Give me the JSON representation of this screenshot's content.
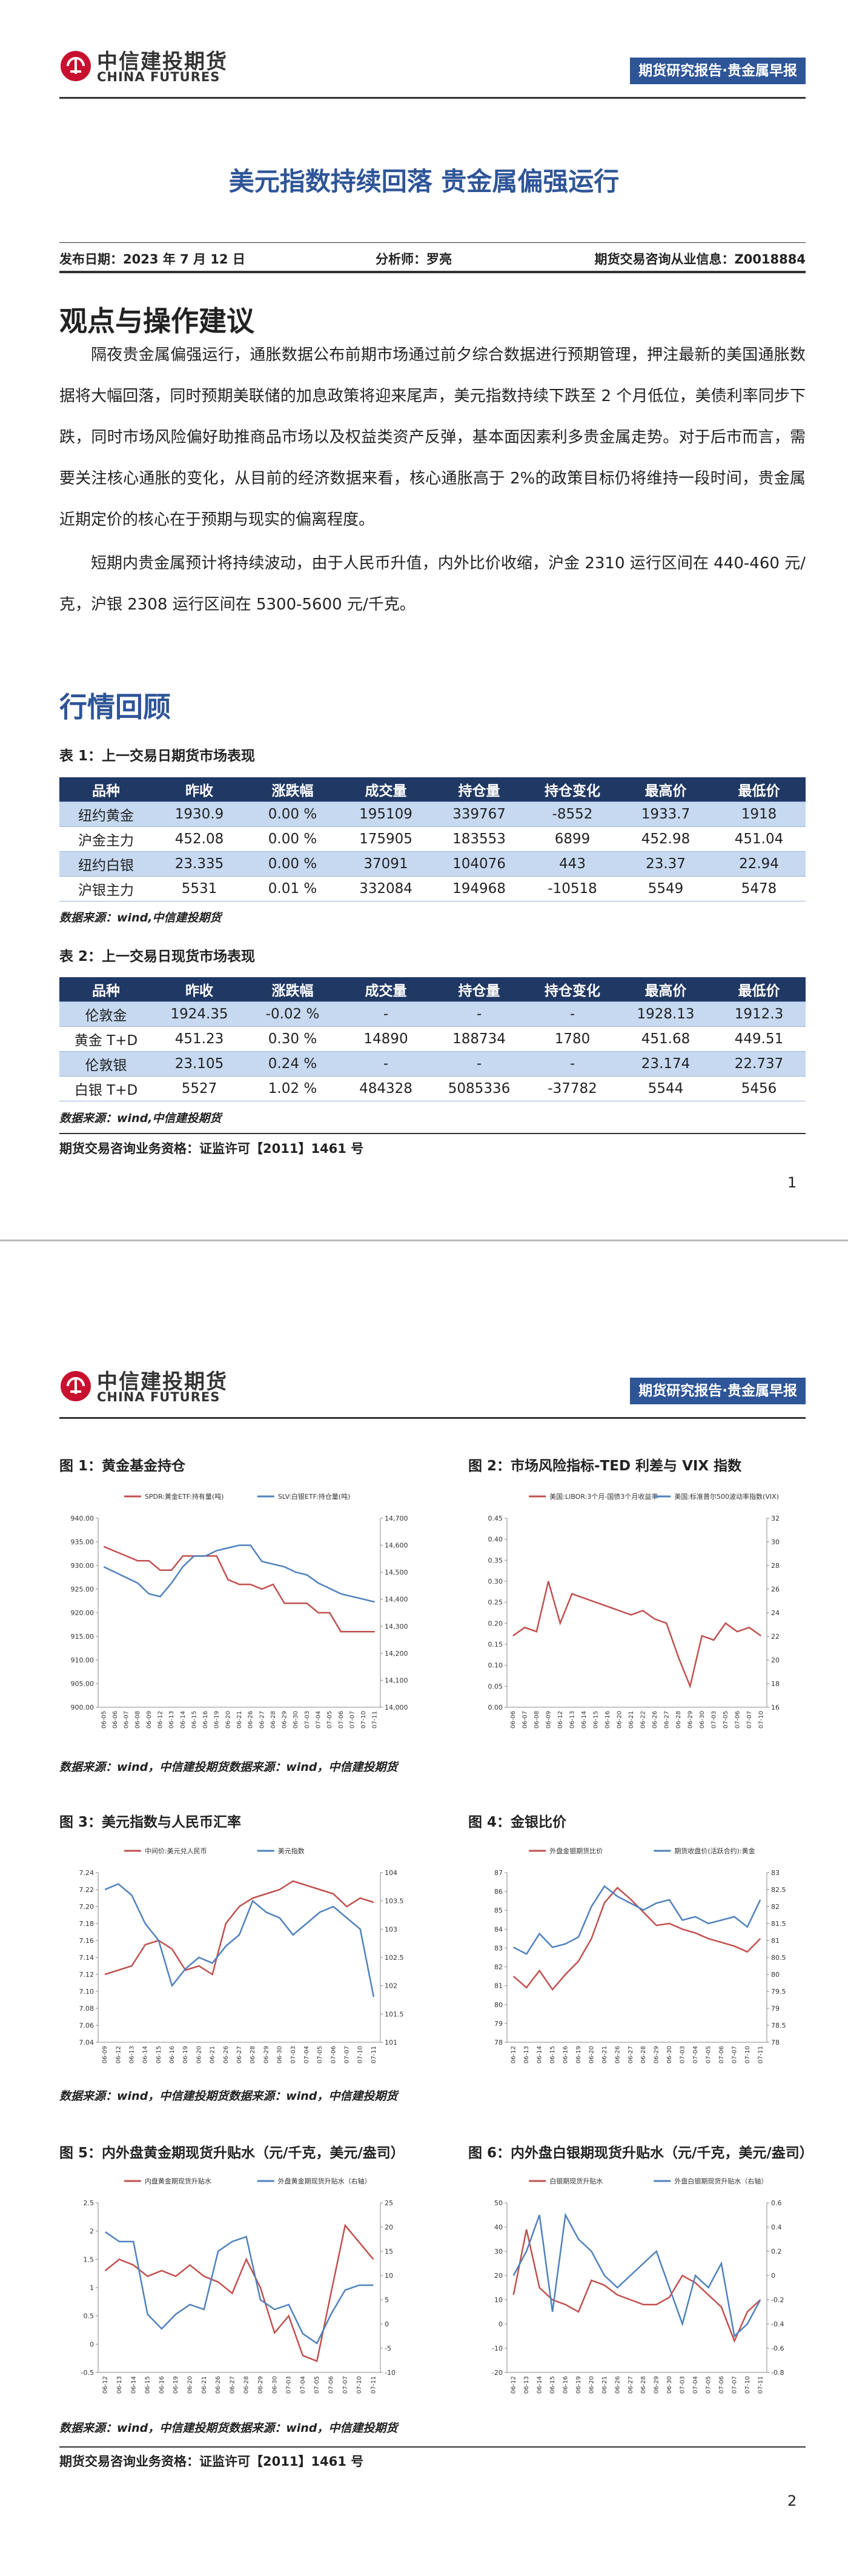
{
  "header": {
    "logo_cn": "中信建投期货",
    "logo_en": "CHINA FUTURES",
    "tag": "期货研究报告·贵金属早报"
  },
  "title": "美元指数持续回落 贵金属偏强运行",
  "info": {
    "date": "发布日期：2023 年 7 月 12 日",
    "analyst": "分析师：罗亮",
    "license": "期货交易咨询从业信息：Z0018884"
  },
  "section1": {
    "heading": "观点与操作建议",
    "paragraphs": [
      "隔夜贵金属偏强运行，通胀数据公布前期市场通过前夕综合数据进行预期管理，押注最新的美国通胀数据将大幅回落，同时预期美联储的加息政策将迎来尾声，美元指数持续下跌至 2 个月低位，美债利率同步下跌，同时市场风险偏好助推商品市场以及权益类资产反弹，基本面因素利多贵金属走势。对于后市而言，需要关注核心通胀的变化，从目前的经济数据来看，核心通胀高于 2%的政策目标仍将维持一段时间，贵金属近期定价的核心在于预期与现实的偏离程度。",
      "短期内贵金属预计将持续波动，由于人民币升值，内外比价收缩，沪金 2310 运行区间在 440-460 元/克，沪银 2308 运行区间在 5300-5600 元/千克。"
    ]
  },
  "section2": {
    "heading": "行情回顾"
  },
  "tables": [
    {
      "caption": "表 1：上一交易日期货市场表现",
      "header": [
        "品种",
        "昨收",
        "涨跌幅",
        "成交量",
        "持仓量",
        "持仓变化",
        "最高价",
        "最低价"
      ],
      "rows": [
        [
          "纽约黄金",
          "1930.9",
          "0.00 %",
          "195109",
          "339767",
          "-8552",
          "1933.7",
          "1918"
        ],
        [
          "沪金主力",
          "452.08",
          "0.00 %",
          "175905",
          "183553",
          "6899",
          "452.98",
          "451.04"
        ],
        [
          "纽约白银",
          "23.335",
          "0.00 %",
          "37091",
          "104076",
          "443",
          "23.37",
          "22.94"
        ],
        [
          "沪银主力",
          "5531",
          "0.01 %",
          "332084",
          "194968",
          "-10518",
          "5549",
          "5478"
        ]
      ],
      "source": "数据来源：wind,中信建投期货"
    },
    {
      "caption": "表 2：上一交易日现货市场表现",
      "header": [
        "品种",
        "昨收",
        "涨跌幅",
        "成交量",
        "持仓量",
        "持仓变化",
        "最高价",
        "最低价"
      ],
      "rows": [
        [
          "伦敦金",
          "1924.35",
          "-0.02 %",
          "-",
          "-",
          "-",
          "1928.13",
          "1912.3"
        ],
        [
          "黄金 T+D",
          "451.23",
          "0.30 %",
          "14890",
          "188734",
          "1780",
          "451.68",
          "449.51"
        ],
        [
          "伦敦银",
          "23.105",
          "0.24 %",
          "-",
          "-",
          "-",
          "23.174",
          "22.737"
        ],
        [
          "白银 T+D",
          "5527",
          "1.02 %",
          "484328",
          "5085336",
          "-37782",
          "5544",
          "5456"
        ]
      ],
      "source": "数据来源：wind,中信建投期货"
    }
  ],
  "footer": "期货交易咨询业务资格：证监许可【2011】1461 号",
  "page_numbers": [
    "1",
    "2"
  ],
  "chart_sources": [
    "数据来源：wind，中信建投期货数据来源：wind，中信建投期货",
    "数据来源：wind，中信建投期货数据来源：wind，中信建投期货",
    "数据来源：wind，中信建投期货数据来源：wind，中信建投期货"
  ],
  "charts": [
    {
      "type": "line",
      "caption": "图 1：黄金基金持仓",
      "categories": [
        "06-05",
        "06-06",
        "06-07",
        "06-08",
        "06-09",
        "06-12",
        "06-13",
        "06-14",
        "06-15",
        "06-16",
        "06-19",
        "06-20",
        "06-21",
        "06-26",
        "06-27",
        "06-28",
        "06-29",
        "06-30",
        "07-03",
        "07-04",
        "07-05",
        "07-06",
        "07-07",
        "07-10",
        "07-11"
      ],
      "series": [
        {
          "name": "SPDR:黄金ETF:持有量(吨)",
          "color": "#c0504d",
          "axis": "y",
          "values": [
            934,
            933,
            932,
            931,
            931,
            929,
            929,
            932,
            932,
            932,
            932,
            927,
            926,
            926,
            925,
            926,
            922,
            922,
            922,
            920,
            920,
            916,
            916,
            916,
            916
          ]
        },
        {
          "name": "SLV:白银ETF:持仓量(吨)",
          "color": "#4f81bd",
          "axis": "y2",
          "values": [
            14520,
            14500,
            14480,
            14460,
            14420,
            14410,
            14460,
            14520,
            14560,
            14560,
            14580,
            14590,
            14600,
            14600,
            14540,
            14530,
            14520,
            14500,
            14490,
            14460,
            14440,
            14420,
            14410,
            14400,
            14390
          ]
        }
      ],
      "ylim": [
        900,
        940
      ],
      "yticks": [
        {
          "value": 900,
          "label": "900.00"
        },
        {
          "value": 905,
          "label": "905.00"
        },
        {
          "value": 910,
          "label": "910.00"
        },
        {
          "value": 915,
          "label": "915.00"
        },
        {
          "value": 920,
          "label": "920.00"
        },
        {
          "value": 925,
          "label": "925.00"
        },
        {
          "value": 930,
          "label": "930.00"
        },
        {
          "value": 935,
          "label": "935.00"
        },
        {
          "value": 940,
          "label": "940.00"
        }
      ],
      "y2lim": [
        14000,
        14700
      ],
      "y2ticks": [
        {
          "value": 14000,
          "label": "14,000"
        },
        {
          "value": 14100,
          "label": "14,100"
        },
        {
          "value": 14200,
          "label": "14,200"
        },
        {
          "value": 14300,
          "label": "14,300"
        },
        {
          "value": 14400,
          "label": "14,400"
        },
        {
          "value": 14500,
          "label": "14,500"
        },
        {
          "value": 14600,
          "label": "14,600"
        },
        {
          "value": 14700,
          "label": "14,700"
        }
      ]
    },
    {
      "type": "line",
      "caption": "图 2：市场风险指标-TED 利差与 VIX 指数",
      "categories": [
        "06-06",
        "06-07",
        "06-08",
        "06-09",
        "06-12",
        "06-13",
        "06-14",
        "06-15",
        "06-16",
        "06-20",
        "06-21",
        "06-22",
        "06-26",
        "06-27",
        "06-28",
        "06-29",
        "06-30",
        "07-03",
        "07-05",
        "07-06",
        "07-07",
        "07-10"
      ],
      "series": [
        {
          "name": "美国:LIBOR:3个月-国债3个月收益率",
          "color": "#c0504d",
          "axis": "y",
          "values": [
            0.17,
            0.19,
            0.18,
            0.3,
            0.2,
            0.27,
            0.26,
            0.25,
            0.24,
            0.23,
            0.22,
            0.23,
            0.21,
            0.2,
            0.12,
            0.05,
            0.17,
            0.16,
            0.2,
            0.18,
            0.19,
            0.17
          ]
        },
        {
          "name": "美国:标准普尔500波动率指数(VIX)",
          "color": "#4f81bd",
          "axis": "y2",
          "values": [
            null,
            null,
            null,
            null,
            null,
            null,
            null,
            null,
            null,
            null,
            null,
            null,
            null,
            null,
            null,
            null,
            null,
            null,
            null,
            null,
            null,
            null
          ]
        }
      ],
      "ylim": [
        0,
        0.45
      ],
      "yticks": [
        {
          "value": 0,
          "label": "0.00"
        },
        0.05,
        {
          "value": 0.1,
          "label": "0.10"
        },
        0.15,
        {
          "value": 0.2,
          "label": "0.20"
        },
        0.25,
        {
          "value": 0.3,
          "label": "0.30"
        },
        0.35,
        {
          "value": 0.4,
          "label": "0.40"
        },
        0.45
      ],
      "y2lim": [
        16,
        32
      ],
      "y2ticks": [
        16,
        18,
        20,
        22,
        24,
        26,
        28,
        30,
        32
      ]
    },
    {
      "type": "line",
      "caption": "图 3：美元指数与人民币汇率",
      "categories": [
        "06-09",
        "06-12",
        "06-13",
        "06-14",
        "06-15",
        "06-16",
        "06-19",
        "06-20",
        "06-21",
        "06-26",
        "06-27",
        "06-28",
        "06-29",
        "06-30",
        "07-03",
        "07-04",
        "07-05",
        "07-06",
        "07-07",
        "07-10",
        "07-11"
      ],
      "series": [
        {
          "name": "中间价:美元兑人民币",
          "color": "#c0504d",
          "axis": "y",
          "values": [
            7.12,
            7.125,
            7.13,
            7.155,
            7.16,
            7.15,
            7.125,
            7.13,
            7.12,
            7.18,
            7.2,
            7.21,
            7.215,
            7.22,
            7.23,
            7.225,
            7.22,
            7.215,
            7.2,
            7.21,
            7.205
          ]
        },
        {
          "name": "美元指数",
          "color": "#4f81bd",
          "axis": "y2",
          "values": [
            103.7,
            103.8,
            103.6,
            103.1,
            102.8,
            102,
            102.3,
            102.5,
            102.4,
            102.7,
            102.9,
            103.5,
            103.3,
            103.2,
            102.9,
            103.1,
            103.3,
            103.4,
            103.2,
            103,
            101.8
          ]
        }
      ],
      "ylim": [
        7.04,
        7.24
      ],
      "yticks": [
        7.04,
        7.06,
        7.08,
        {
          "value": 7.1,
          "label": "7.10"
        },
        7.12,
        7.14,
        7.16,
        7.18,
        {
          "value": 7.2,
          "label": "7.20"
        },
        7.22,
        7.24
      ],
      "y2lim": [
        101,
        104
      ],
      "y2ticks": [
        101,
        101.5,
        102,
        102.5,
        103,
        103.5,
        104
      ]
    },
    {
      "type": "line",
      "caption": "图 4：金银比价",
      "categories": [
        "06-12",
        "06-13",
        "06-14",
        "06-15",
        "06-16",
        "06-19",
        "06-20",
        "06-21",
        "06-26",
        "06-27",
        "06-28",
        "06-29",
        "06-30",
        "07-03",
        "07-04",
        "07-05",
        "07-06",
        "07-07",
        "07-10",
        "07-11"
      ],
      "series": [
        {
          "name": "外盘金银期货比价",
          "color": "#c0504d",
          "axis": "y",
          "values": [
            81.5,
            80.9,
            81.8,
            80.8,
            81.6,
            82.3,
            83.5,
            85.4,
            86.2,
            85.6,
            84.9,
            84.2,
            84.3,
            84,
            83.8,
            83.5,
            83.3,
            83.1,
            82.8,
            83.5
          ]
        },
        {
          "name": "期货收盘价(活跃合约):黄金",
          "color": "#4f81bd",
          "axis": "y2",
          "values": [
            80.8,
            80.6,
            81.2,
            80.8,
            80.9,
            81.1,
            82,
            82.6,
            82.3,
            82.1,
            81.9,
            82.1,
            82.2,
            81.6,
            81.7,
            81.5,
            81.6,
            81.7,
            81.4,
            82.2
          ]
        }
      ],
      "ylim": [
        78,
        87
      ],
      "yticks": [
        78,
        79,
        80,
        81,
        82,
        83,
        84,
        85,
        86,
        87
      ],
      "y2lim": [
        78,
        83
      ],
      "y2ticks": [
        78,
        78.5,
        79,
        79.5,
        80,
        80.5,
        81,
        81.5,
        82,
        82.5,
        83
      ]
    },
    {
      "type": "line",
      "caption": "图 5：内外盘黄金期现货升贴水（元/千克，美元/盎司）",
      "categories": [
        "06-12",
        "06-13",
        "06-14",
        "06-15",
        "06-16",
        "06-19",
        "06-20",
        "06-21",
        "06-26",
        "06-27",
        "06-28",
        "06-29",
        "06-30",
        "07-03",
        "07-04",
        "07-05",
        "07-06",
        "07-07",
        "07-10",
        "07-11"
      ],
      "series": [
        {
          "name": "内盘黄金期现货升贴水",
          "color": "#c0504d",
          "axis": "y",
          "values": [
            1.3,
            1.5,
            1.4,
            1.2,
            1.3,
            1.2,
            1.4,
            1.2,
            1.1,
            0.9,
            1.5,
            1,
            0.2,
            0.5,
            -0.2,
            -0.3,
            0.9,
            2.1,
            1.8,
            1.5
          ]
        },
        {
          "name": "外盘黄金期现货升贴水（右轴）",
          "color": "#4f81bd",
          "axis": "y2",
          "values": [
            19,
            17,
            17,
            2,
            -1,
            2,
            4,
            3,
            15,
            17,
            18,
            5,
            3,
            4,
            -2,
            -4,
            2,
            7,
            8,
            8
          ]
        }
      ],
      "ylim": [
        -0.5,
        2.5
      ],
      "yticks": [
        -0.5,
        0,
        0.5,
        1,
        1.5,
        2,
        2.5
      ],
      "y2lim": [
        -10,
        25
      ],
      "y2ticks": [
        -10,
        -5,
        0,
        5,
        10,
        15,
        20,
        25
      ]
    },
    {
      "type": "line",
      "caption": "图 6：内外盘白银期现货升贴水（元/千克，美元/盎司）",
      "categories": [
        "06-12",
        "06-13",
        "06-14",
        "06-15",
        "06-16",
        "06-19",
        "06-20",
        "06-21",
        "06-26",
        "06-27",
        "06-28",
        "06-29",
        "06-30",
        "07-03",
        "07-04",
        "07-05",
        "07-06",
        "07-07",
        "07-10",
        "07-11"
      ],
      "series": [
        {
          "name": "白银期现货升贴水",
          "color": "#c0504d",
          "axis": "y",
          "values": [
            12,
            39,
            15,
            10,
            8,
            5,
            18,
            16,
            12,
            10,
            8,
            8,
            11,
            20,
            17,
            12,
            7,
            -7,
            5,
            10
          ]
        },
        {
          "name": "外盘白银期现货升贴水（右轴）",
          "color": "#4f81bd",
          "axis": "y2",
          "values": [
            0,
            0.2,
            0.5,
            -0.3,
            0.5,
            0.3,
            0.2,
            0,
            -0.1,
            0,
            0.1,
            0.2,
            -0.1,
            -0.4,
            0,
            -0.1,
            0.1,
            -0.5,
            -0.4,
            -0.2
          ]
        }
      ],
      "ylim": [
        -20,
        50
      ],
      "yticks": [
        -20,
        -10,
        0,
        10,
        20,
        30,
        40,
        50
      ],
      "y2lim": [
        -0.8,
        0.6
      ],
      "y2ticks": [
        -0.8,
        -0.6,
        -0.4,
        -0.2,
        0,
        0.2,
        0.4,
        0.6
      ]
    }
  ]
}
